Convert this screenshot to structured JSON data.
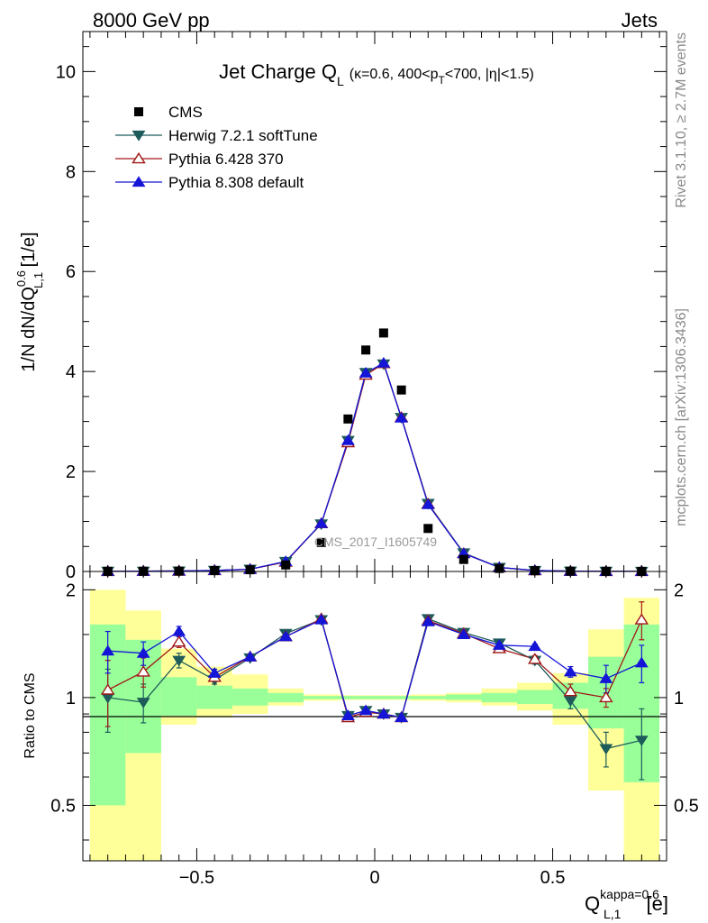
{
  "header": {
    "left": "8000 GeV pp",
    "right": "Jets"
  },
  "side_labels": {
    "rivet": "Rivet 3.1.10, ≥ 2.7M events",
    "mcplots": "mcplots.cern.ch [arXiv:1306.3436]"
  },
  "chart_data": {
    "type": "scatter",
    "title": {
      "main": "Jet Charge Q",
      "main_sub": "L",
      "cuts_a": "(κ=0.6, 400<p",
      "cuts_sub": "T",
      "cuts_b": "<700, |η|<1.5)"
    },
    "watermark": "CMS_2017_I1605749",
    "ylabel": {
      "a": "1/N dN/dQ",
      "sup": "0.6",
      "sub": "L,1",
      "b": " [1/e]"
    },
    "xlabel": {
      "a": "Q",
      "sup": "kappa=0.6",
      "sub": "L,1",
      "b": " [e]"
    },
    "ratio_ylabel": "Ratio to CMS",
    "xlim": [
      -0.82,
      0.82
    ],
    "ylim": [
      0,
      10.8
    ],
    "ratio_ylim": [
      0.35,
      2.25
    ],
    "x_ticks": [
      -0.5,
      0,
      0.5
    ],
    "x_tick_labels": [
      "−0.5",
      "0",
      "0.5"
    ],
    "y_ticks": [
      0,
      2,
      4,
      6,
      8,
      10
    ],
    "y_tick_labels": [
      "0",
      "2",
      "4",
      "6",
      "8",
      "10"
    ],
    "ratio_ticks": [
      0.5,
      1,
      2
    ],
    "ratio_tick_labels": [
      "0.5",
      "1",
      "2"
    ],
    "x": [
      -0.75,
      -0.65,
      -0.55,
      -0.45,
      -0.35,
      -0.25,
      -0.15,
      -0.075,
      -0.025,
      0.025,
      0.075,
      0.15,
      0.25,
      0.35,
      0.45,
      0.55,
      0.65,
      0.75
    ],
    "bin_edges": [
      -0.8,
      -0.7,
      -0.6,
      -0.5,
      -0.4,
      -0.3,
      -0.2,
      -0.1,
      -0.05,
      0.0,
      0.05,
      0.1,
      0.2,
      0.3,
      0.4,
      0.5,
      0.6,
      0.7,
      0.8
    ],
    "series": [
      {
        "name": "CMS",
        "color": "#000000",
        "marker": "square",
        "values": [
          0.003,
          0.005,
          0.007,
          0.018,
          0.035,
          0.13,
          0.58,
          3.05,
          4.43,
          4.77,
          3.63,
          0.86,
          0.24,
          0.06,
          0.015,
          0.006,
          0.003,
          0.002
        ]
      },
      {
        "name": "Herwig 7.2.1 softTune",
        "color": "#1e5b5b",
        "marker": "triangle-down",
        "values": [
          0.003,
          0.005,
          0.008,
          0.02,
          0.045,
          0.2,
          0.95,
          2.62,
          3.98,
          4.15,
          3.08,
          1.36,
          0.37,
          0.081,
          0.019,
          0.006,
          0.002,
          0.0015
        ],
        "ratio": [
          1.0,
          0.97,
          1.27,
          1.12,
          1.29,
          1.51,
          1.65,
          0.89,
          0.92,
          0.9,
          0.88,
          1.66,
          1.52,
          1.42,
          1.27,
          0.98,
          0.72,
          0.76
        ],
        "ratio_err": [
          0.2,
          0.12,
          0.06,
          0.03,
          0.02,
          0.02,
          0.02,
          0.01,
          0.01,
          0.01,
          0.01,
          0.02,
          0.02,
          0.02,
          0.03,
          0.05,
          0.08,
          0.17
        ]
      },
      {
        "name": "Pythia 6.428 370",
        "color": "#a01818",
        "marker": "triangle-up-open",
        "values": [
          0.003,
          0.006,
          0.01,
          0.02,
          0.045,
          0.19,
          0.96,
          2.58,
          3.93,
          4.16,
          3.08,
          1.35,
          0.36,
          0.079,
          0.019,
          0.006,
          0.003,
          0.003
        ],
        "ratio": [
          1.05,
          1.18,
          1.43,
          1.14,
          1.3,
          1.48,
          1.66,
          0.88,
          0.91,
          0.9,
          0.88,
          1.64,
          1.51,
          1.37,
          1.28,
          1.04,
          1.0,
          1.65
        ],
        "ratio_err": [
          0.22,
          0.11,
          0.05,
          0.03,
          0.02,
          0.02,
          0.02,
          0.01,
          0.01,
          0.01,
          0.01,
          0.02,
          0.02,
          0.02,
          0.03,
          0.05,
          0.06,
          0.2
        ]
      },
      {
        "name": "Pythia 8.308 default",
        "color": "#1515d8",
        "marker": "triangle-up",
        "values": [
          0.004,
          0.007,
          0.01,
          0.02,
          0.045,
          0.2,
          0.96,
          2.62,
          3.97,
          4.17,
          3.07,
          1.34,
          0.36,
          0.081,
          0.02,
          0.007,
          0.003,
          0.002
        ],
        "ratio": [
          1.35,
          1.33,
          1.53,
          1.17,
          1.3,
          1.48,
          1.65,
          0.89,
          0.92,
          0.9,
          0.88,
          1.63,
          1.5,
          1.4,
          1.39,
          1.18,
          1.13,
          1.25
        ],
        "ratio_err": [
          0.18,
          0.1,
          0.05,
          0.03,
          0.02,
          0.02,
          0.02,
          0.01,
          0.01,
          0.01,
          0.01,
          0.02,
          0.02,
          0.02,
          0.02,
          0.04,
          0.1,
          0.15
        ]
      }
    ],
    "uncertainty_bands": {
      "outer_color": "#ffff99",
      "inner_color": "#99ff99",
      "outer_lo": [
        0.35,
        0.35,
        0.84,
        0.88,
        0.9,
        0.95,
        0.98,
        0.985,
        0.985,
        0.985,
        0.985,
        0.98,
        0.97,
        0.95,
        0.92,
        0.84,
        0.55,
        0.35
      ],
      "outer_hi": [
        2.0,
        1.75,
        1.37,
        1.22,
        1.16,
        1.06,
        1.02,
        1.015,
        1.015,
        1.015,
        1.015,
        1.02,
        1.03,
        1.06,
        1.1,
        1.17,
        1.55,
        1.9
      ],
      "inner_lo": [
        0.5,
        0.7,
        0.89,
        0.93,
        0.95,
        0.97,
        0.99,
        0.99,
        0.99,
        0.99,
        0.99,
        0.99,
        0.985,
        0.97,
        0.96,
        0.93,
        0.82,
        0.58
      ],
      "inner_hi": [
        1.6,
        1.45,
        1.14,
        1.08,
        1.06,
        1.03,
        1.01,
        1.01,
        1.01,
        1.01,
        1.01,
        1.01,
        1.02,
        1.03,
        1.05,
        1.1,
        1.3,
        1.6
      ]
    },
    "legend_position": "top-left"
  }
}
